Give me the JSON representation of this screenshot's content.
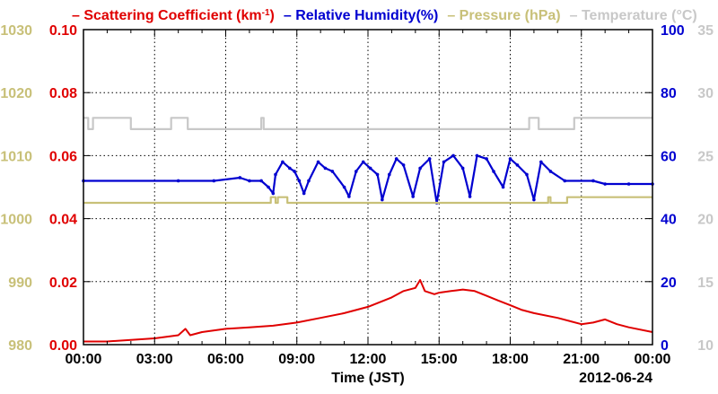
{
  "chart_data": {
    "type": "line",
    "xlabel": "Time (JST)",
    "date_label": "2012-06-24",
    "x_ticks": [
      "00:00",
      "03:00",
      "06:00",
      "09:00",
      "12:00",
      "15:00",
      "18:00",
      "21:00",
      "00:00"
    ],
    "xlim": [
      0,
      24
    ],
    "grid": true,
    "legend_position": "top",
    "axes": {
      "scattering": {
        "ylim": [
          0.0,
          0.1
        ],
        "tick_labels": [
          "0.00",
          "0.02",
          "0.04",
          "0.06",
          "0.08",
          "0.10"
        ],
        "color": "#e00000",
        "side": "left-inner"
      },
      "pressure": {
        "ylim": [
          980,
          1030
        ],
        "tick_labels": [
          "980",
          "990",
          "1000",
          "1010",
          "1020",
          "1030"
        ],
        "color": "#c8c078",
        "side": "left-outer"
      },
      "humidity": {
        "ylim": [
          0,
          100
        ],
        "tick_labels": [
          "0",
          "20",
          "40",
          "60",
          "80",
          "100"
        ],
        "color": "#0000d0",
        "side": "right-inner"
      },
      "temperature": {
        "ylim": [
          10,
          35
        ],
        "tick_labels": [
          "10",
          "15",
          "20",
          "25",
          "30",
          "35"
        ],
        "color": "#c8c8c8",
        "side": "right-outer"
      }
    },
    "legend": [
      {
        "label": "Scattering Coefficient (km",
        "sup": "-1",
        "tail": ")",
        "color": "#e00000"
      },
      {
        "label": "Relative Humidity(%)",
        "color": "#0000d0"
      },
      {
        "label": "Pressure (hPa)",
        "color": "#c8c078"
      },
      {
        "label": "Temperature (°C)",
        "color": "#c8c8c8"
      }
    ],
    "series": [
      {
        "name": "Scattering Coefficient",
        "axis": "scattering",
        "color": "#e00000",
        "x": [
          0,
          1,
          2,
          3,
          4,
          4.3,
          4.5,
          5,
          6,
          7,
          8,
          9,
          10,
          11,
          12,
          13,
          13.5,
          14,
          14.2,
          14.4,
          14.8,
          15,
          15.5,
          16,
          16.5,
          17,
          17.5,
          18,
          18.5,
          19,
          20,
          21,
          21.5,
          22,
          22.5,
          23,
          24
        ],
        "y": [
          0.001,
          0.001,
          0.0015,
          0.002,
          0.003,
          0.005,
          0.003,
          0.004,
          0.005,
          0.0055,
          0.006,
          0.007,
          0.0085,
          0.01,
          0.012,
          0.015,
          0.017,
          0.018,
          0.0205,
          0.017,
          0.016,
          0.0165,
          0.017,
          0.0175,
          0.017,
          0.0155,
          0.014,
          0.0125,
          0.011,
          0.01,
          0.0085,
          0.0065,
          0.007,
          0.008,
          0.0065,
          0.0055,
          0.004
        ]
      },
      {
        "name": "Relative Humidity",
        "axis": "humidity",
        "color": "#0000d0",
        "x": [
          0,
          4,
          5.5,
          6.6,
          7,
          7.5,
          7.8,
          8.0,
          8.1,
          8.4,
          8.7,
          8.9,
          9.1,
          9.3,
          9.5,
          9.9,
          10.2,
          10.5,
          11,
          11.2,
          11.5,
          11.8,
          12.1,
          12.4,
          12.6,
          12.9,
          13.2,
          13.5,
          13.9,
          14.2,
          14.6,
          14.9,
          15.2,
          15.6,
          16,
          16.3,
          16.6,
          17,
          17.3,
          17.7,
          18,
          18.3,
          18.7,
          19,
          19.3,
          19.7,
          20.3,
          21.5,
          22,
          23,
          24
        ],
        "y": [
          52,
          52,
          52,
          53,
          52,
          52,
          50,
          48,
          54,
          58,
          56,
          55,
          52,
          48,
          52,
          58,
          56,
          55,
          50,
          47,
          55,
          58,
          56,
          54,
          46,
          54,
          59,
          57,
          47,
          56,
          59,
          45,
          58,
          60,
          56,
          47,
          60,
          59,
          55,
          50,
          59,
          57,
          54,
          46,
          58,
          55,
          52,
          52,
          51,
          51,
          51
        ]
      },
      {
        "name": "Pressure",
        "axis": "pressure",
        "color": "#c8c078",
        "x": [
          0,
          3,
          6,
          7.6,
          7.8,
          7.9,
          8.1,
          8.2,
          8.4,
          8.6,
          12,
          16,
          19.5,
          19.6,
          19.7,
          20,
          20.4,
          22,
          24
        ],
        "y": [
          1002.5,
          1002.5,
          1002.5,
          1002.5,
          1002.5,
          1003.4,
          1002.5,
          1003.4,
          1003.4,
          1002.5,
          1002.5,
          1002.5,
          1002.5,
          1003.4,
          1002.5,
          1002.5,
          1003.4,
          1003.4,
          1003.4
        ]
      },
      {
        "name": "Temperature",
        "axis": "temperature",
        "color": "#c8c8c8",
        "x": [
          0,
          0.1,
          0.2,
          0.4,
          1.0,
          1.1,
          2,
          2.1,
          3,
          3.5,
          3.7,
          4.2,
          4.4,
          5,
          7.0,
          7.3,
          7.5,
          7.6,
          8,
          12,
          16,
          18.5,
          18.8,
          19.0,
          19.2,
          19.5,
          19.8,
          20.5,
          20.7,
          22,
          24
        ],
        "y": [
          28,
          28,
          27.1,
          28,
          28,
          28,
          27.1,
          27.1,
          27.1,
          27.1,
          28,
          28,
          27.1,
          27.1,
          27.1,
          27.1,
          28,
          27.1,
          27.1,
          27.1,
          27.1,
          27.1,
          28,
          28,
          27.1,
          27.1,
          27.1,
          27.1,
          28,
          28,
          28
        ]
      }
    ]
  }
}
